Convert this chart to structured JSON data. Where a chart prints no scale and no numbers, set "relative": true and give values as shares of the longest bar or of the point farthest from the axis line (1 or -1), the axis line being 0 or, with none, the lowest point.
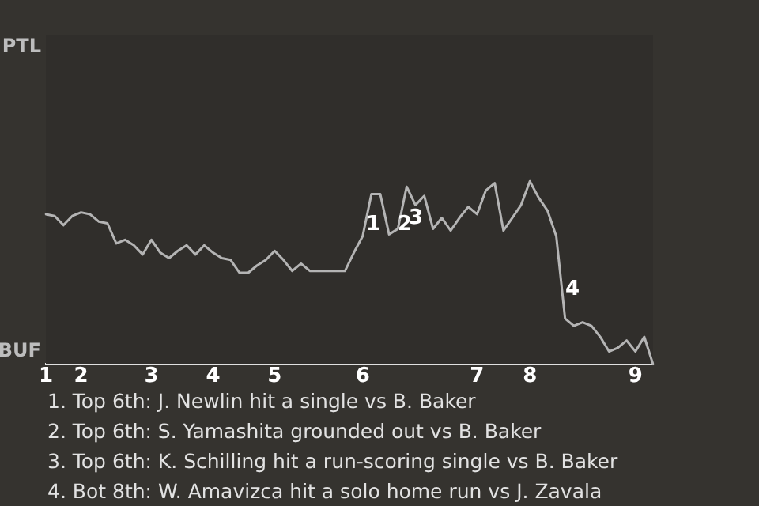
{
  "chart_data": {
    "type": "line",
    "relative": true,
    "categories": [
      "1",
      null,
      null,
      null,
      "2",
      null,
      null,
      null,
      null,
      null,
      null,
      null,
      "3",
      null,
      null,
      null,
      null,
      null,
      null,
      "4",
      null,
      null,
      null,
      null,
      null,
      null,
      "5",
      null,
      null,
      null,
      null,
      null,
      null,
      null,
      null,
      null,
      "6",
      null,
      null,
      null,
      null,
      null,
      null,
      null,
      null,
      null,
      null,
      null,
      null,
      "7",
      null,
      null,
      null,
      null,
      null,
      "8",
      null,
      null,
      null,
      null,
      null,
      null,
      null,
      null,
      null,
      null,
      null,
      "9",
      null,
      null
    ],
    "series": [
      {
        "color": "#b4b4b4",
        "values": [
          0.82,
          0.81,
          0.76,
          0.81,
          0.83,
          0.82,
          0.78,
          0.77,
          0.66,
          0.68,
          0.65,
          0.6,
          0.68,
          0.61,
          0.58,
          0.62,
          0.65,
          0.6,
          0.65,
          0.61,
          0.58,
          0.57,
          0.5,
          0.5,
          0.54,
          0.57,
          0.62,
          0.57,
          0.51,
          0.55,
          0.51,
          0.51,
          0.51,
          0.51,
          0.51,
          0.61,
          0.7,
          0.93,
          0.93,
          0.71,
          0.74,
          0.97,
          0.87,
          0.92,
          0.74,
          0.8,
          0.73,
          0.8,
          0.86,
          0.82,
          0.95,
          0.99,
          0.73,
          0.8,
          0.87,
          1,
          0.91,
          0.84,
          0.7,
          0.25,
          0.21,
          0.23,
          0.21,
          0.15,
          0.07,
          0.09,
          0.13,
          0.07,
          0.15,
          0
        ]
      }
    ],
    "marker": "none",
    "annotations": [
      "PTL",
      "BUF",
      "1",
      "2",
      "3",
      "4",
      "1. Top 6th: J. Newlin hit a single vs B. Baker",
      "2. Top 6th: S. Yamashita grounded out vs B. Baker",
      "3. Top 6th: K. Schilling hit a run-scoring single vs B. Baker",
      "4. Bot 8th: W. Amavizca hit a solo home run vs J. Zavala"
    ]
  }
}
